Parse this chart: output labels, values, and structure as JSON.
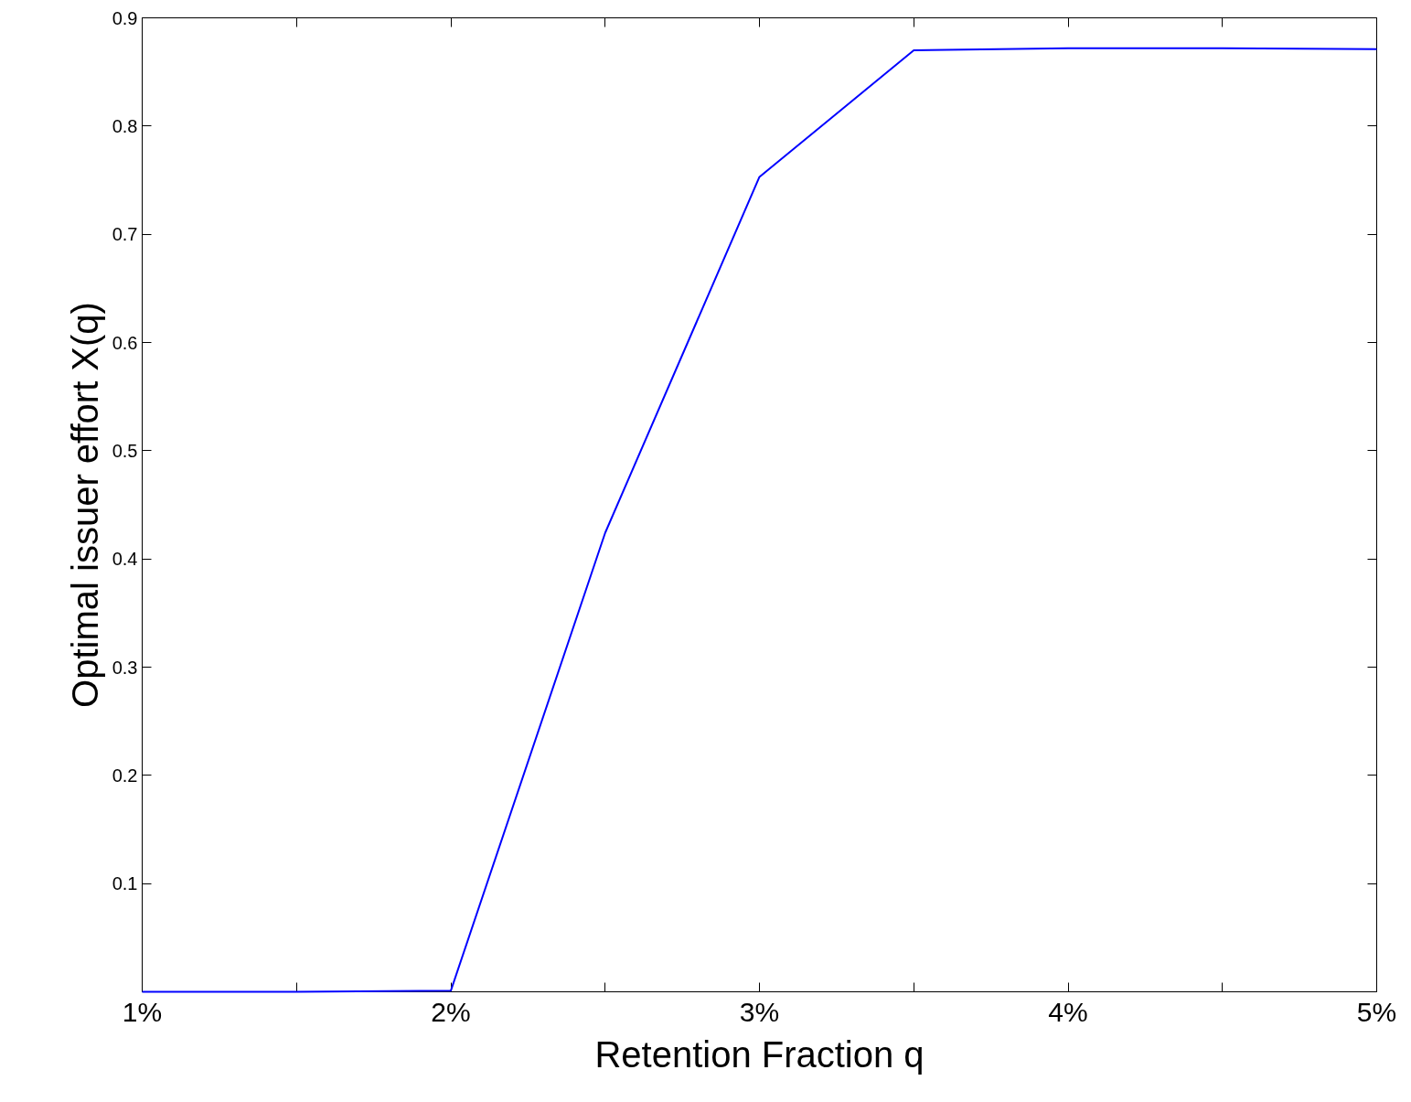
{
  "chart_data": {
    "type": "line",
    "xlabel": "Retention Fraction q",
    "ylabel": "Optimal issuer effort X(q)",
    "x": [
      1,
      1.5,
      2,
      2.5,
      3,
      3.5,
      4,
      4.5,
      5
    ],
    "series": [
      {
        "color": "#0000ff",
        "values": [
          0,
          0,
          0.001,
          0.424,
          0.753,
          0.87,
          0.872,
          0.872,
          0.871
        ]
      }
    ],
    "xlim": [
      1,
      5
    ],
    "xticks": [
      {
        "value": 1,
        "label": "1%"
      },
      {
        "value": 1.5,
        "label": null
      },
      {
        "value": 2,
        "label": "2%"
      },
      {
        "value": 2.5,
        "label": null
      },
      {
        "value": 3,
        "label": "3%"
      },
      {
        "value": 3.5,
        "label": null
      },
      {
        "value": 4,
        "label": "4%"
      },
      {
        "value": 4.5,
        "label": null
      },
      {
        "value": 5,
        "label": "5%"
      }
    ],
    "ylim": [
      0,
      0.9
    ],
    "yticks": [
      0.1,
      0.2,
      0.3,
      0.4,
      0.5,
      0.6,
      0.7,
      0.8,
      0.9
    ],
    "grid": false,
    "marker": "none",
    "line_style": "solid"
  }
}
